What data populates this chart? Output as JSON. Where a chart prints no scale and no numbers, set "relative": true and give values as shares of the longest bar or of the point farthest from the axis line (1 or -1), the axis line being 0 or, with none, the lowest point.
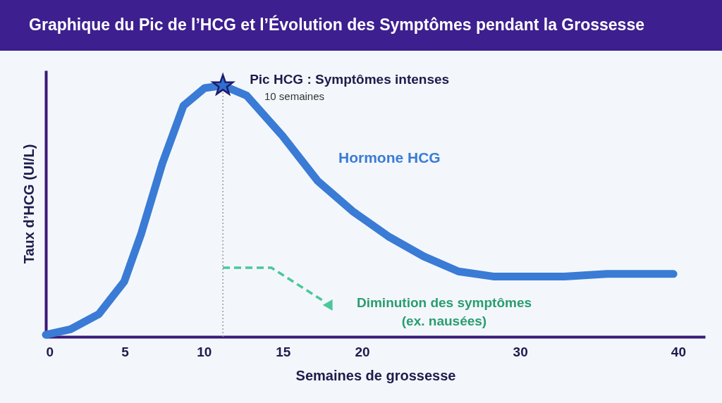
{
  "chart_data": {
    "type": "line",
    "title": "Graphique du Pic de l’HCG et l’Évolution des Symptômes pendant la Grossesse",
    "xlabel": "Semaines de grossesse",
    "ylabel": "Taux d’HCG (UI/L)",
    "relative": true,
    "grid": false,
    "legend": false,
    "line_style": "solid",
    "x": [
      0,
      1.56,
      3.35,
      4.96,
      6.03,
      7.37,
      8.71,
      10.04,
      11.2,
      12.7,
      14.96,
      17.2,
      19.4,
      21.65,
      23.9,
      26.1,
      28.3,
      30.6,
      32.8,
      35.5,
      39.7
    ],
    "xlim": [
      0,
      41.7
    ],
    "xticks": [
      0,
      5,
      10,
      15,
      20,
      30,
      40
    ],
    "series": [
      {
        "name": "Hormone HCG",
        "color": "#3a7bd5",
        "values": [
          0.008,
          0.03,
          0.09,
          0.22,
          0.41,
          0.69,
          0.92,
          0.99,
          1,
          0.96,
          0.8,
          0.62,
          0.5,
          0.4,
          0.32,
          0.26,
          0.24,
          0.24,
          0.24,
          0.25,
          0.25
        ]
      },
      {
        "type": "scatter",
        "marker": "star",
        "color": "#2f6fd0",
        "x": [
          11.2
        ],
        "values": [
          1
        ]
      }
    ],
    "ref_lines": [
      {
        "axis": "x",
        "value": 11.2,
        "color": "#9a9a9a",
        "line_style": "dotted"
      }
    ],
    "annotations": [
      {
        "text": "Pic HCG : Symptômes intenses",
        "x": 11.2,
        "y": 1
      },
      "10 semaines",
      "Diminution des symptômes",
      "(ex. nausées)"
    ]
  }
}
